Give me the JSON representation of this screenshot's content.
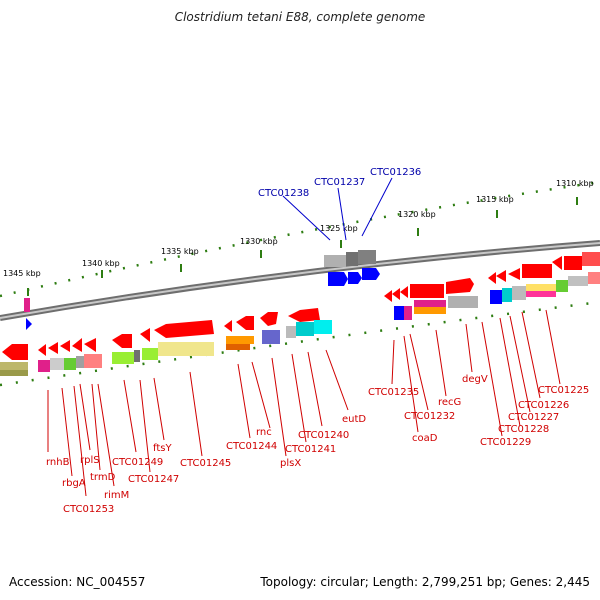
{
  "title": "Clostridium tetani E88, complete genome",
  "accession": "Accession: NC_004557",
  "summary": "Topology: circular; Length: 2,799,251 bp; Genes: 2,445",
  "colors": {
    "backbone": "#8a8a8a",
    "forward_gene": "#ff0000",
    "reverse_gene": "#0000ff",
    "tick": "#2e7d12",
    "label_red": "#d00000",
    "label_blue": "#0000aa"
  },
  "kbp_labels": [
    "1345 kbp",
    "1340 kbp",
    "1335 kbp",
    "1330 kbp",
    "1325 kbp",
    "1320 kbp",
    "1315 kbp",
    "1310 kbp"
  ],
  "blue_gene_labels": [
    "CTC01238",
    "CTC01237",
    "CTC01236"
  ],
  "red_gene_labels": [
    "rnhB",
    "rbgA",
    "rplS",
    "trmD",
    "rimM",
    "CTC01253",
    "CTC01249",
    "CTC01247",
    "ftsY",
    "CTC01245",
    "rnc",
    "CTC01244",
    "plsX",
    "CTC01241",
    "CTC01240",
    "eutD",
    "CTC01235",
    "coaD",
    "CTC01232",
    "recG",
    "degV",
    "CTC01229",
    "CTC01228",
    "CTC01227",
    "CTC01226",
    "CTC01225"
  ]
}
